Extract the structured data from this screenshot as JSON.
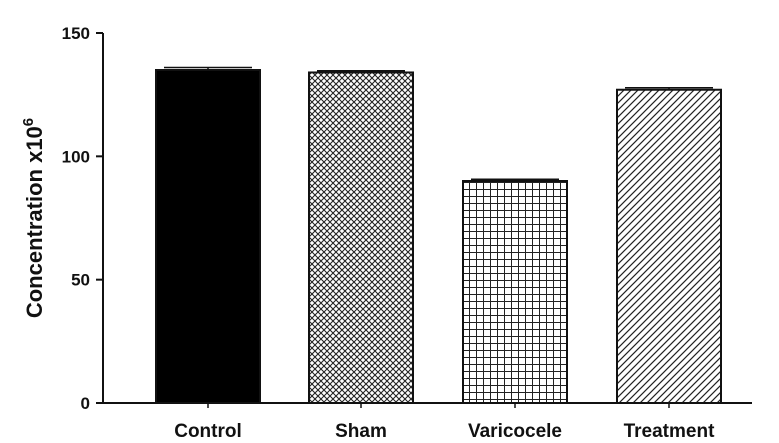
{
  "chart_data": {
    "type": "bar",
    "categories": [
      "Control",
      "Sham",
      "Varicocele",
      "Treatment"
    ],
    "values": [
      135,
      134,
      90,
      127
    ],
    "errors": [
      1.0,
      0.7,
      0.7,
      0.8
    ],
    "ylabel": "Concentration x10",
    "ylabel_superscript": "6",
    "ylim": [
      0,
      150
    ],
    "yticks": [
      "0",
      "50",
      "100",
      "150"
    ],
    "ytick_values": [
      0,
      50,
      100,
      150
    ],
    "grid": false,
    "fills": [
      "solid-black",
      "crosshatch-diagonal",
      "grid-square",
      "diagonal-stripes"
    ]
  }
}
